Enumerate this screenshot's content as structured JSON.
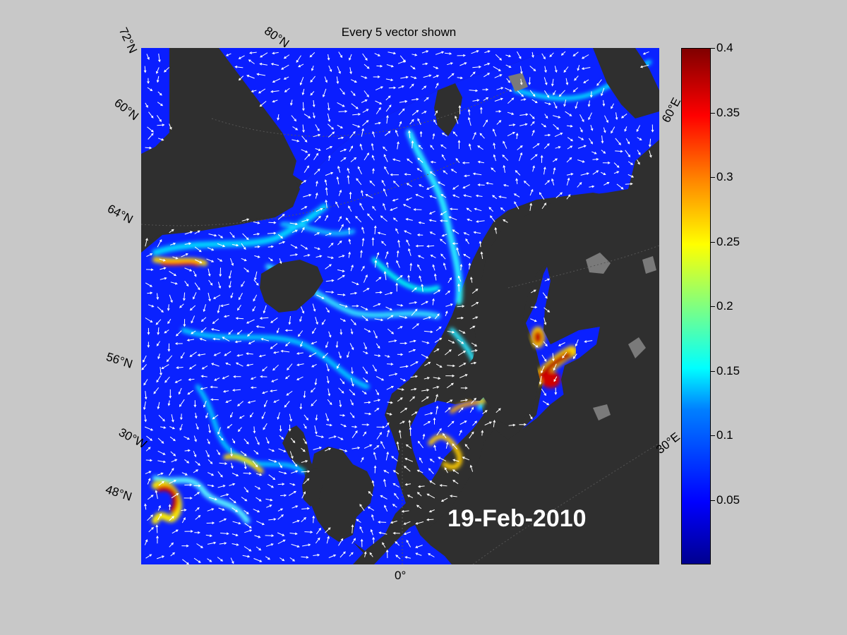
{
  "figure": {
    "title": "Every 5 vector shown",
    "date": "19-Feb-2010"
  },
  "map_labels": {
    "lat_72N": "72°N",
    "lat_80N": "80°N",
    "lat_60N_top": "60°N",
    "lat_64N": "64°N",
    "lat_56N": "56°N",
    "lon_30W": "30°W",
    "lat_48N": "48°N",
    "lon_0": "0°",
    "lon_60E": "60°E",
    "lon_30E": "30°E"
  },
  "colorbar": {
    "colormap": "jet",
    "min": 0,
    "max": 0.4,
    "ticks": [
      "0.4",
      "0.35",
      "0.3",
      "0.25",
      "0.2",
      "0.15",
      "0.1",
      "0.05"
    ],
    "tick_values": [
      0.4,
      0.35,
      0.3,
      0.25,
      0.2,
      0.15,
      0.1,
      0.05
    ]
  },
  "colors": {
    "land": "#2f2f2f",
    "ice_land": "#7a7a7a",
    "ocean_low": "#0000d8",
    "vector": "#ffffff",
    "background": "#c8c8c8"
  }
}
